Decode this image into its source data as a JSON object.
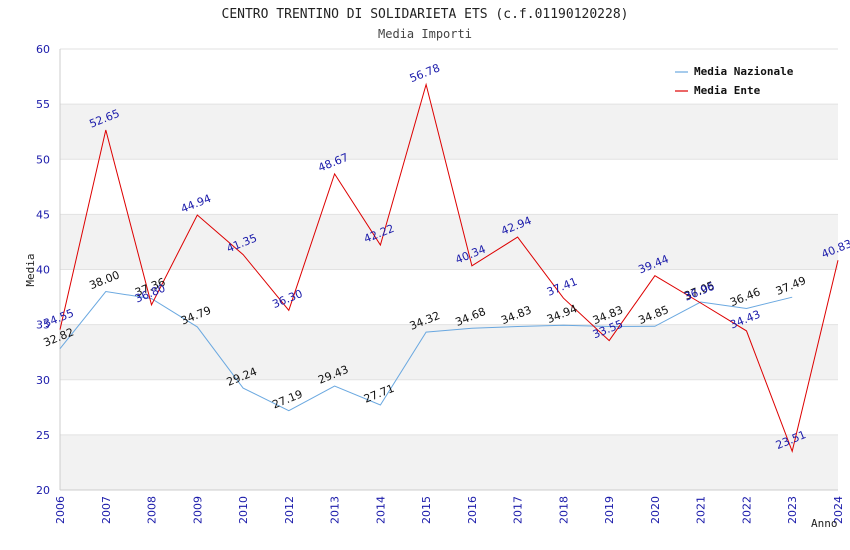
{
  "chart_data": {
    "type": "line",
    "title": "CENTRO TRENTINO DI SOLIDARIETA ETS (c.f.01190120228)",
    "subtitle": "Media Importi",
    "xlabel": "Anno",
    "ylabel": "Media",
    "ylim": [
      20,
      60
    ],
    "yticks": [
      "20",
      "25",
      "30",
      "35",
      "40",
      "45",
      "50",
      "55",
      "60"
    ],
    "categories": [
      "2006",
      "2007",
      "2008",
      "2009",
      "2010",
      "2012",
      "2013",
      "2014",
      "2015",
      "2016",
      "2017",
      "2018",
      "2019",
      "2020",
      "2021",
      "2022",
      "2023",
      "2024"
    ],
    "legend_position": "top-right",
    "series": [
      {
        "name": "Media Nazionale",
        "color": "#6aa8e0",
        "values": [
          32.82,
          38.0,
          37.36,
          34.79,
          29.24,
          27.19,
          29.43,
          27.71,
          34.32,
          34.68,
          34.83,
          34.94,
          34.83,
          34.85,
          37.05,
          36.46,
          37.49,
          null
        ],
        "labels": [
          "32.82",
          "38.00",
          "37.36",
          "34.79",
          "29.24",
          "27.19",
          "29.43",
          "27.71",
          "34.32",
          "34.68",
          "34.83",
          "34.94",
          "34.83",
          "34.85",
          "37.05",
          "36.46",
          "37.49",
          ""
        ]
      },
      {
        "name": "Media Ente",
        "color": "#dd0000",
        "values": [
          34.55,
          52.65,
          36.8,
          44.94,
          41.35,
          36.3,
          48.67,
          42.22,
          56.78,
          40.34,
          42.94,
          37.41,
          33.55,
          39.44,
          36.96,
          34.43,
          23.51,
          40.83
        ],
        "labels": [
          "34.55",
          "52.65",
          "36.80",
          "44.94",
          "41.35",
          "36.30",
          "48.67",
          "42.22",
          "56.78",
          "40.34",
          "42.94",
          "37.41",
          "33.55",
          "39.44",
          "36.96",
          "34.43",
          "23.51",
          "40.83"
        ]
      }
    ]
  }
}
